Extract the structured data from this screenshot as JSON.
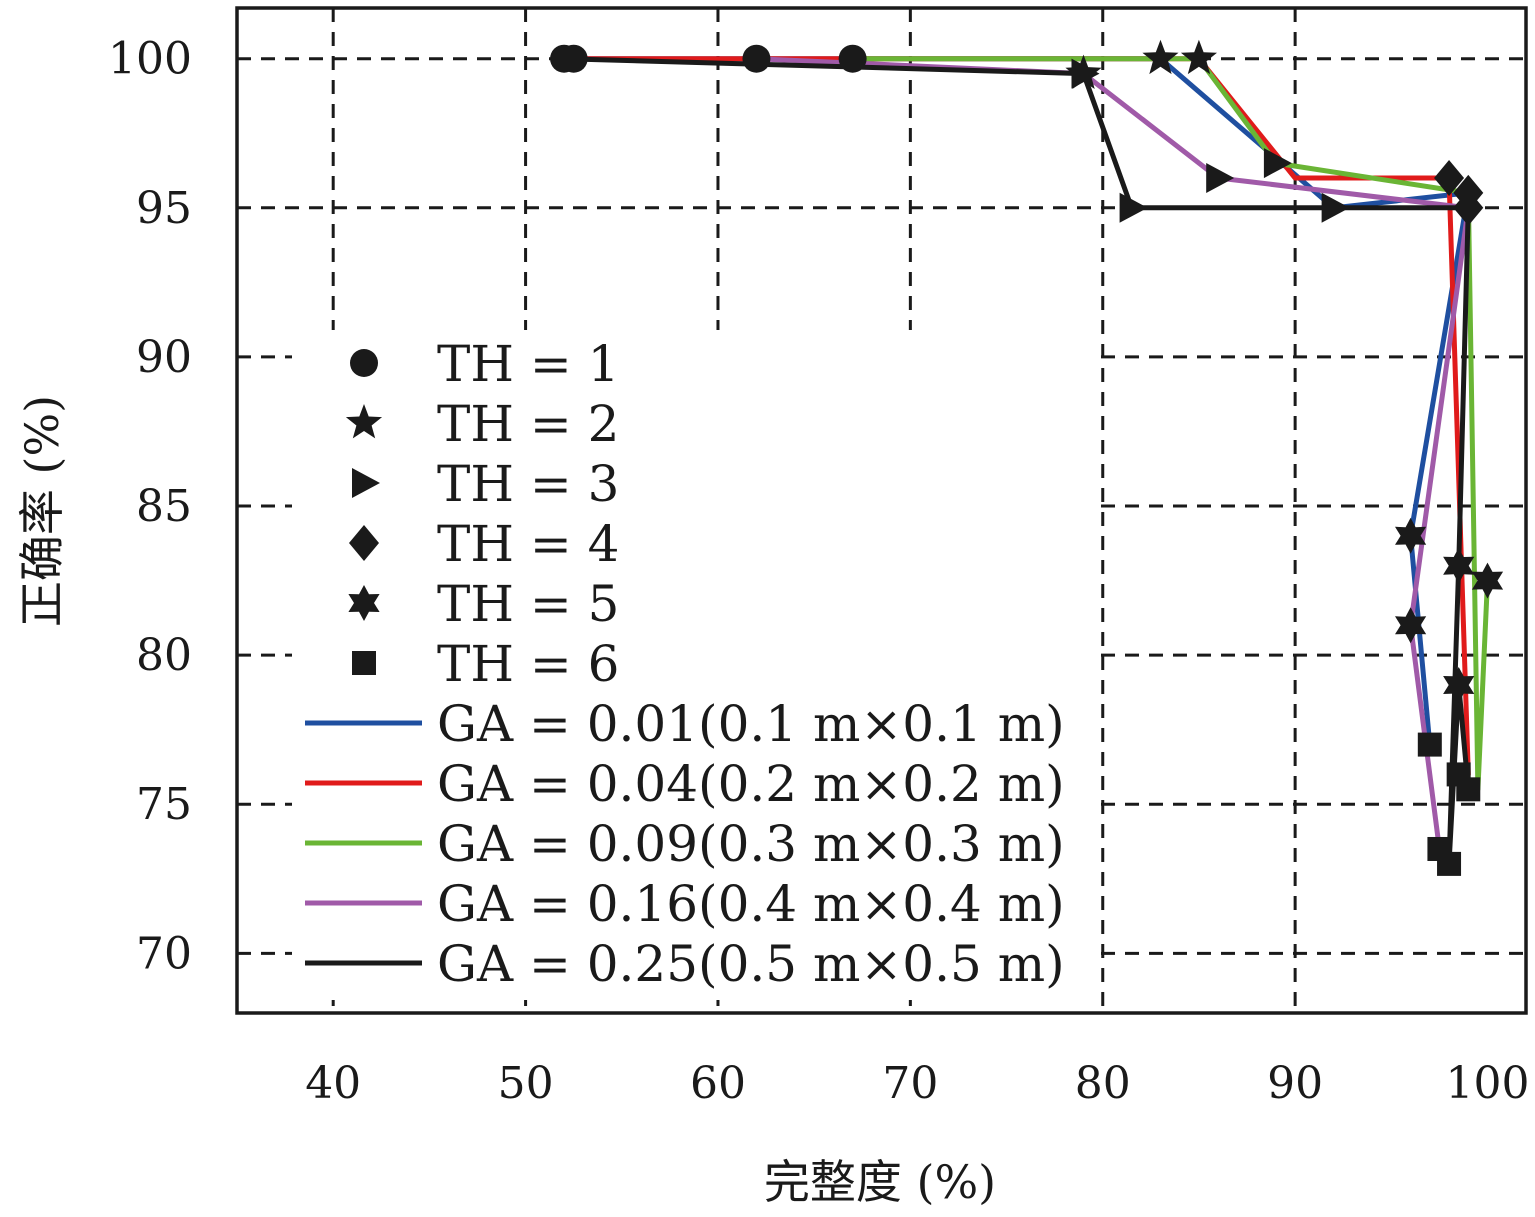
{
  "chart_data": {
    "type": "line",
    "title": "",
    "xlabel": "完整度 (%)",
    "ylabel": "正确率 (%)",
    "xlim": [
      35,
      102
    ],
    "ylim": [
      68,
      101.7
    ],
    "xticks": [
      40,
      50,
      60,
      70,
      80,
      90,
      100
    ],
    "yticks": [
      70,
      75,
      80,
      85,
      90,
      95,
      100
    ],
    "grid": true,
    "legend_position": "left-center",
    "markers": [
      {
        "th": 1,
        "label": "TH = 1",
        "shape": "circle"
      },
      {
        "th": 2,
        "label": "TH = 2",
        "shape": "star5"
      },
      {
        "th": 3,
        "label": "TH = 3",
        "shape": "triangle-right"
      },
      {
        "th": 4,
        "label": "TH = 4",
        "shape": "diamond"
      },
      {
        "th": 5,
        "label": "TH = 5",
        "shape": "star6"
      },
      {
        "th": 6,
        "label": "TH = 6",
        "shape": "square"
      }
    ],
    "series": [
      {
        "name": "GA = 0.01(0.1 m×0.1 m)",
        "color": "#1f4fa0",
        "x": [
          52.5,
          62,
          83,
          92,
          99,
          96,
          97
        ],
        "y": [
          100,
          100,
          100,
          95,
          95.5,
          84,
          77
        ]
      },
      {
        "name": "GA = 0.04(0.2 m×0.2 m)",
        "color": "#e01b1b",
        "x": [
          52.5,
          62,
          67,
          85,
          90,
          98,
          99,
          98.5
        ],
        "y": [
          100,
          100,
          100,
          100,
          96,
          96,
          76,
          76
        ]
      },
      {
        "name": "GA = 0.09(0.3 m×0.3 m)",
        "color": "#6ab535",
        "x": [
          67,
          83,
          85,
          89,
          99,
          99.5,
          100
        ],
        "y": [
          100,
          100,
          100,
          96.5,
          95.5,
          75.5,
          82.5
        ]
      },
      {
        "name": "GA = 0.16(0.4 m×0.4 m)",
        "color": "#a05aa8",
        "x": [
          62,
          79,
          86,
          99,
          96,
          97.5
        ],
        "y": [
          100,
          99.5,
          96,
          95,
          81,
          73.5
        ]
      },
      {
        "name": "GA = 0.25(0.5 m×0.5 m)",
        "color": "#1a1a1a",
        "x": [
          52,
          79,
          81.5,
          99,
          98.5,
          98,
          98.5,
          99
        ],
        "y": [
          100,
          99.5,
          95,
          95,
          83,
          73,
          79,
          75.5
        ]
      }
    ],
    "points": [
      {
        "th": 1,
        "x": 52,
        "y": 100
      },
      {
        "th": 1,
        "x": 52.5,
        "y": 100
      },
      {
        "th": 1,
        "x": 62,
        "y": 100
      },
      {
        "th": 1,
        "x": 67,
        "y": 100
      },
      {
        "th": 2,
        "x": 79,
        "y": 99.5
      },
      {
        "th": 2,
        "x": 83,
        "y": 100
      },
      {
        "th": 2,
        "x": 85,
        "y": 100
      },
      {
        "th": 3,
        "x": 79,
        "y": 99.5
      },
      {
        "th": 3,
        "x": 81.5,
        "y": 95
      },
      {
        "th": 3,
        "x": 86,
        "y": 96
      },
      {
        "th": 3,
        "x": 89,
        "y": 96.5
      },
      {
        "th": 3,
        "x": 92,
        "y": 95
      },
      {
        "th": 4,
        "x": 98,
        "y": 96
      },
      {
        "th": 4,
        "x": 99,
        "y": 95.5
      },
      {
        "th": 4,
        "x": 99,
        "y": 95
      },
      {
        "th": 5,
        "x": 96,
        "y": 84
      },
      {
        "th": 5,
        "x": 96,
        "y": 81
      },
      {
        "th": 5,
        "x": 98.5,
        "y": 83
      },
      {
        "th": 5,
        "x": 98.5,
        "y": 79
      },
      {
        "th": 5,
        "x": 100,
        "y": 82.5
      },
      {
        "th": 6,
        "x": 97,
        "y": 77
      },
      {
        "th": 6,
        "x": 97.5,
        "y": 73.5
      },
      {
        "th": 6,
        "x": 98,
        "y": 73
      },
      {
        "th": 6,
        "x": 99,
        "y": 75.5
      },
      {
        "th": 6,
        "x": 98.5,
        "y": 76
      }
    ]
  }
}
